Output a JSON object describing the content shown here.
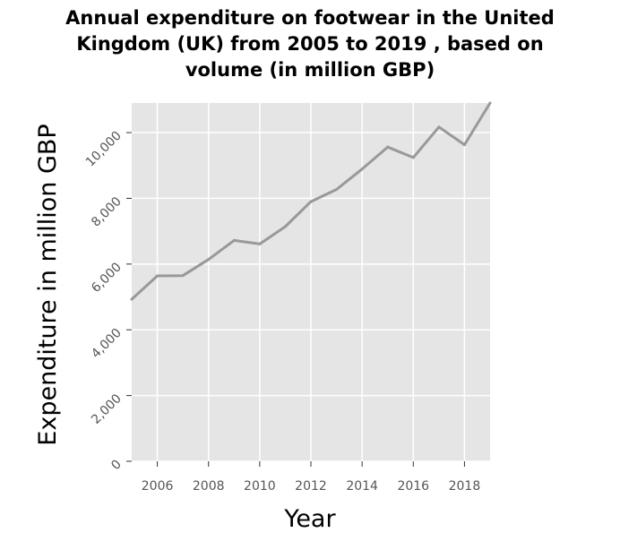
{
  "chart_data": {
    "type": "line",
    "title_lines": [
      "Annual expenditure on footwear in the United",
      "Kingdom (UK) from 2005 to 2019 , based on",
      "volume (in million GBP)"
    ],
    "xlabel": "Year",
    "ylabel": "Expenditure in million GBP",
    "x": [
      2005,
      2006,
      2007,
      2008,
      2009,
      2010,
      2011,
      2012,
      2013,
      2014,
      2015,
      2016,
      2017,
      2018,
      2019
    ],
    "values": [
      4930,
      5640,
      5650,
      6140,
      6720,
      6610,
      7140,
      7900,
      8270,
      8890,
      9560,
      9240,
      10170,
      9630,
      10900
    ],
    "x_ticks": [
      2006,
      2008,
      2010,
      2012,
      2014,
      2016,
      2018
    ],
    "x_tick_labels": [
      "2006",
      "2008",
      "2010",
      "2012",
      "2014",
      "2016",
      "2018"
    ],
    "y_ticks": [
      0,
      2000,
      4000,
      6000,
      8000,
      10000
    ],
    "y_tick_labels": [
      "0",
      "2,000",
      "4,000",
      "6,000",
      "8,000",
      "10,000"
    ],
    "xlim": [
      2005,
      2019
    ],
    "ylim": [
      0,
      10900
    ],
    "grid": true,
    "colors": {
      "background": "#e5e5e5",
      "grid": "#ffffff",
      "line": "#999999"
    }
  }
}
